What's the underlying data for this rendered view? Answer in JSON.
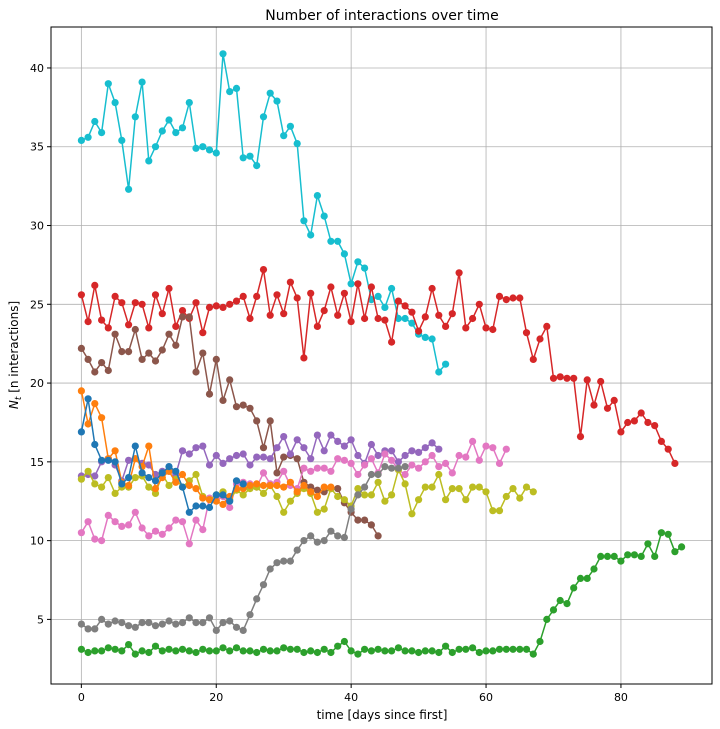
{
  "chart_data": {
    "type": "line",
    "title": "Number of interactions over time",
    "xlabel": "time [days since first]",
    "ylabel": "N_t [n interactions]",
    "xlim": [
      -4.5,
      93.5
    ],
    "ylim": [
      0.9,
      42.6
    ],
    "xticks": [
      0,
      20,
      40,
      60,
      80
    ],
    "yticks": [
      5,
      10,
      15,
      20,
      25,
      30,
      35,
      40
    ],
    "grid": true,
    "legend": "none",
    "series": [
      {
        "color": "#17becf",
        "x_start": 0,
        "values": [
          35.4,
          35.6,
          36.6,
          35.9,
          39.0,
          37.8,
          35.4,
          32.3,
          36.9,
          39.1,
          34.1,
          35.0,
          36.0,
          36.7,
          35.9,
          36.2,
          37.8,
          34.9,
          35.0,
          34.8,
          34.6,
          40.9,
          38.5,
          38.7,
          34.3,
          34.4,
          33.8,
          36.9,
          38.4,
          37.9,
          35.7,
          36.3,
          35.2,
          30.3,
          29.4,
          31.9,
          30.6,
          29.0,
          29.0,
          28.2,
          26.3,
          27.7,
          27.3,
          25.3,
          25.5,
          24.8,
          26.0,
          24.1,
          24.1,
          23.8,
          23.1,
          22.9,
          22.8,
          20.7,
          21.2
        ]
      },
      {
        "color": "#d62728",
        "x_start": 0,
        "values": [
          25.6,
          23.9,
          26.2,
          24.0,
          23.5,
          25.5,
          25.1,
          23.7,
          25.1,
          25.0,
          23.5,
          25.6,
          24.4,
          26.0,
          23.6,
          24.6,
          24.1,
          25.1,
          23.2,
          24.8,
          24.9,
          24.8,
          25.0,
          25.2,
          25.5,
          24.1,
          25.5,
          27.2,
          24.3,
          25.6,
          24.4,
          26.4,
          25.4,
          21.6,
          25.7,
          23.6,
          24.6,
          26.1,
          24.3,
          25.7,
          23.9,
          26.3,
          24.1,
          26.1,
          24.1,
          24.0,
          22.6,
          25.2,
          24.9,
          24.5,
          23.3,
          24.2,
          26.0,
          24.3,
          23.6,
          24.4,
          27.0,
          23.5,
          24.1,
          25.0,
          23.5,
          23.4,
          25.5,
          25.3,
          25.4,
          25.4,
          23.2,
          21.5,
          22.8,
          23.6,
          20.3,
          20.4,
          20.3,
          20.3,
          16.6,
          20.2,
          18.6,
          20.1,
          18.4,
          18.9,
          16.9,
          17.5,
          17.6,
          18.1,
          17.5,
          17.3,
          16.3,
          15.8,
          14.9
        ]
      },
      {
        "color": "#8c564b",
        "x_start": 0,
        "values": [
          22.2,
          21.5,
          20.7,
          21.3,
          20.8,
          23.1,
          22.0,
          22.0,
          23.4,
          21.5,
          21.9,
          21.4,
          22.1,
          23.1,
          22.4,
          24.2,
          24.2,
          20.7,
          21.9,
          19.3,
          21.5,
          18.9,
          20.2,
          18.5,
          18.6,
          18.4,
          17.6,
          15.9,
          17.6,
          14.3,
          15.3,
          15.4,
          15.2,
          13.7,
          13.4,
          13.2,
          13.1,
          13.3,
          13.3,
          12.4,
          11.8,
          11.3,
          11.3,
          11.0,
          10.3
        ]
      },
      {
        "color": "#9467bd",
        "x_start": 0,
        "values": [
          14.1,
          14.2,
          14.1,
          15.0,
          15.2,
          14.8,
          13.8,
          15.1,
          15.2,
          14.9,
          14.8,
          14.2,
          14.4,
          14.4,
          14.2,
          15.7,
          15.5,
          15.9,
          16.0,
          14.8,
          15.4,
          14.9,
          15.2,
          15.4,
          15.5,
          14.8,
          15.3,
          15.3,
          15.2,
          15.9,
          16.6,
          15.5,
          16.4,
          15.9,
          15.2,
          16.7,
          15.7,
          16.7,
          16.3,
          16.0,
          16.4,
          15.4,
          14.9,
          16.1,
          15.4,
          15.7,
          15.7,
          15.0,
          15.4,
          15.7,
          15.6,
          15.9,
          16.2,
          15.8
        ]
      },
      {
        "color": "#e377c2",
        "x_start": 0,
        "values": [
          10.5,
          11.2,
          10.1,
          10.0,
          11.6,
          11.2,
          10.9,
          11.0,
          11.8,
          10.8,
          10.3,
          10.6,
          10.4,
          10.8,
          11.3,
          11.2,
          9.8,
          11.3,
          10.7,
          12.7,
          12.6,
          12.8,
          12.1,
          13.6,
          13.7,
          13.6,
          13.4,
          14.3,
          13.6,
          13.7,
          14.4,
          13.5,
          13.3,
          14.6,
          14.4,
          14.6,
          14.6,
          14.4,
          15.2,
          15.1,
          14.9,
          14.2,
          14.8,
          15.2,
          14.3,
          15.5,
          15.1,
          14.5,
          14.2,
          14.8,
          14.6,
          15.0,
          15.4,
          14.7,
          14.9,
          14.3,
          15.4,
          15.3,
          16.3,
          15.1,
          16.0,
          15.9,
          14.9,
          15.8
        ]
      },
      {
        "color": "#bcbd22",
        "x_start": 0,
        "values": [
          13.9,
          14.4,
          13.6,
          13.4,
          14.0,
          13.0,
          13.4,
          13.4,
          14.0,
          14.1,
          13.4,
          13.0,
          14.2,
          13.5,
          13.9,
          13.4,
          13.8,
          14.2,
          12.8,
          12.6,
          12.9,
          13.1,
          12.6,
          13.2,
          12.9,
          13.3,
          13.4,
          13.0,
          13.5,
          12.8,
          11.8,
          12.5,
          13.0,
          13.3,
          13.0,
          11.8,
          12.0,
          13.3,
          12.8,
          12.6,
          12.2,
          13.3,
          12.9,
          12.9,
          13.7,
          12.5,
          12.9,
          14.5,
          13.6,
          11.7,
          12.6,
          13.4,
          13.4,
          14.2,
          12.6,
          13.3,
          13.3,
          12.6,
          13.4,
          13.4,
          13.1,
          11.9,
          11.9,
          12.8,
          13.3,
          12.7,
          13.4,
          13.1
        ]
      },
      {
        "color": "#ff7f0e",
        "x_start": 0,
        "values": [
          19.5,
          17.4,
          18.7,
          17.8,
          15.2,
          15.7,
          13.7,
          13.5,
          15.2,
          14.7,
          16.0,
          13.3,
          14.0,
          14.4,
          13.7,
          14.2,
          13.5,
          13.3,
          12.7,
          12.6,
          12.5,
          12.3,
          12.8,
          13.3,
          13.3,
          13.5,
          13.6,
          13.5,
          13.5,
          13.5,
          13.4,
          13.7,
          13.1,
          13.5,
          13.1,
          12.8,
          13.4,
          13.4
        ]
      },
      {
        "color": "#1f77b4",
        "x_start": 0,
        "values": [
          16.9,
          19.0,
          16.1,
          15.1,
          15.1,
          15.0,
          13.6,
          14.0,
          16.0,
          14.3,
          14.0,
          13.8,
          14.3,
          14.7,
          14.4,
          13.4,
          11.8,
          12.2,
          12.2,
          12.1,
          12.9,
          12.9,
          12.5,
          13.8,
          13.6
        ]
      },
      {
        "color": "#7f7f7f",
        "x_start": 0,
        "values": [
          4.7,
          4.4,
          4.4,
          5.0,
          4.7,
          4.9,
          4.8,
          4.6,
          4.5,
          4.8,
          4.8,
          4.6,
          4.7,
          4.9,
          4.7,
          4.8,
          5.1,
          4.8,
          4.8,
          5.1,
          4.3,
          4.8,
          4.9,
          4.5,
          4.3,
          5.3,
          6.3,
          7.2,
          8.2,
          8.6,
          8.7,
          8.7,
          9.4,
          10.0,
          10.3,
          9.9,
          10.0,
          10.6,
          10.3,
          10.2,
          12.0,
          12.9,
          13.4,
          14.2,
          14.2,
          14.7,
          14.6,
          14.6,
          14.7
        ]
      },
      {
        "color": "#2ca02c",
        "x_start": 0,
        "values": [
          3.1,
          2.9,
          3.0,
          3.0,
          3.2,
          3.1,
          3.0,
          3.4,
          2.8,
          3.0,
          2.9,
          3.3,
          3.0,
          3.1,
          3.0,
          3.1,
          3.0,
          2.9,
          3.1,
          3.0,
          3.0,
          3.2,
          3.0,
          3.2,
          3.0,
          3.0,
          2.9,
          3.1,
          3.0,
          3.0,
          3.2,
          3.1,
          3.1,
          2.9,
          3.0,
          2.9,
          3.1,
          2.9,
          3.3,
          3.6,
          3.0,
          2.8,
          3.1,
          3.0,
          3.1,
          3.0,
          3.0,
          3.2,
          3.0,
          3.0,
          2.9,
          3.0,
          3.0,
          2.9,
          3.3,
          2.9,
          3.1,
          3.1,
          3.2,
          2.9,
          3.0,
          3.0,
          3.1,
          3.1,
          3.1,
          3.1,
          3.1,
          2.8,
          3.6,
          5.0,
          5.6,
          6.2,
          6.0,
          7.0,
          7.6,
          7.6,
          8.2,
          9.0,
          9.0,
          9.0,
          8.7,
          9.1,
          9.1,
          9.0,
          9.8,
          9.0,
          10.5,
          10.4,
          9.3,
          9.6
        ]
      }
    ]
  }
}
